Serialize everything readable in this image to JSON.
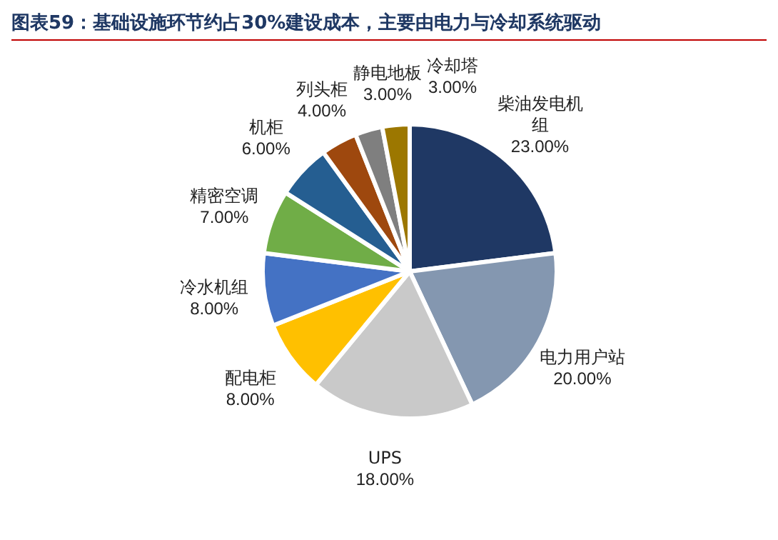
{
  "chart_data": {
    "type": "pie",
    "title": "图表59：基础设施环节约占30%建设成本，主要由电力与冷却系统驱动",
    "categories": [
      "柴油发电机组",
      "电力用户站",
      "UPS",
      "配电柜",
      "冷水机组",
      "精密空调",
      "机柜",
      "列头柜",
      "静电地板",
      "冷却塔"
    ],
    "values": [
      23,
      20,
      18,
      8,
      8,
      7,
      6,
      4,
      3,
      3
    ],
    "value_labels": [
      "23.00%",
      "20.00%",
      "18.00%",
      "8.00%",
      "8.00%",
      "7.00%",
      "6.00%",
      "4.00%",
      "3.00%",
      "3.00%"
    ],
    "colors": [
      "#1f3864",
      "#8497b0",
      "#c9c9c9",
      "#ffc000",
      "#4472c4",
      "#70ad47",
      "#255e91",
      "#9e480e",
      "#7f7f7f",
      "#9c7700"
    ]
  }
}
